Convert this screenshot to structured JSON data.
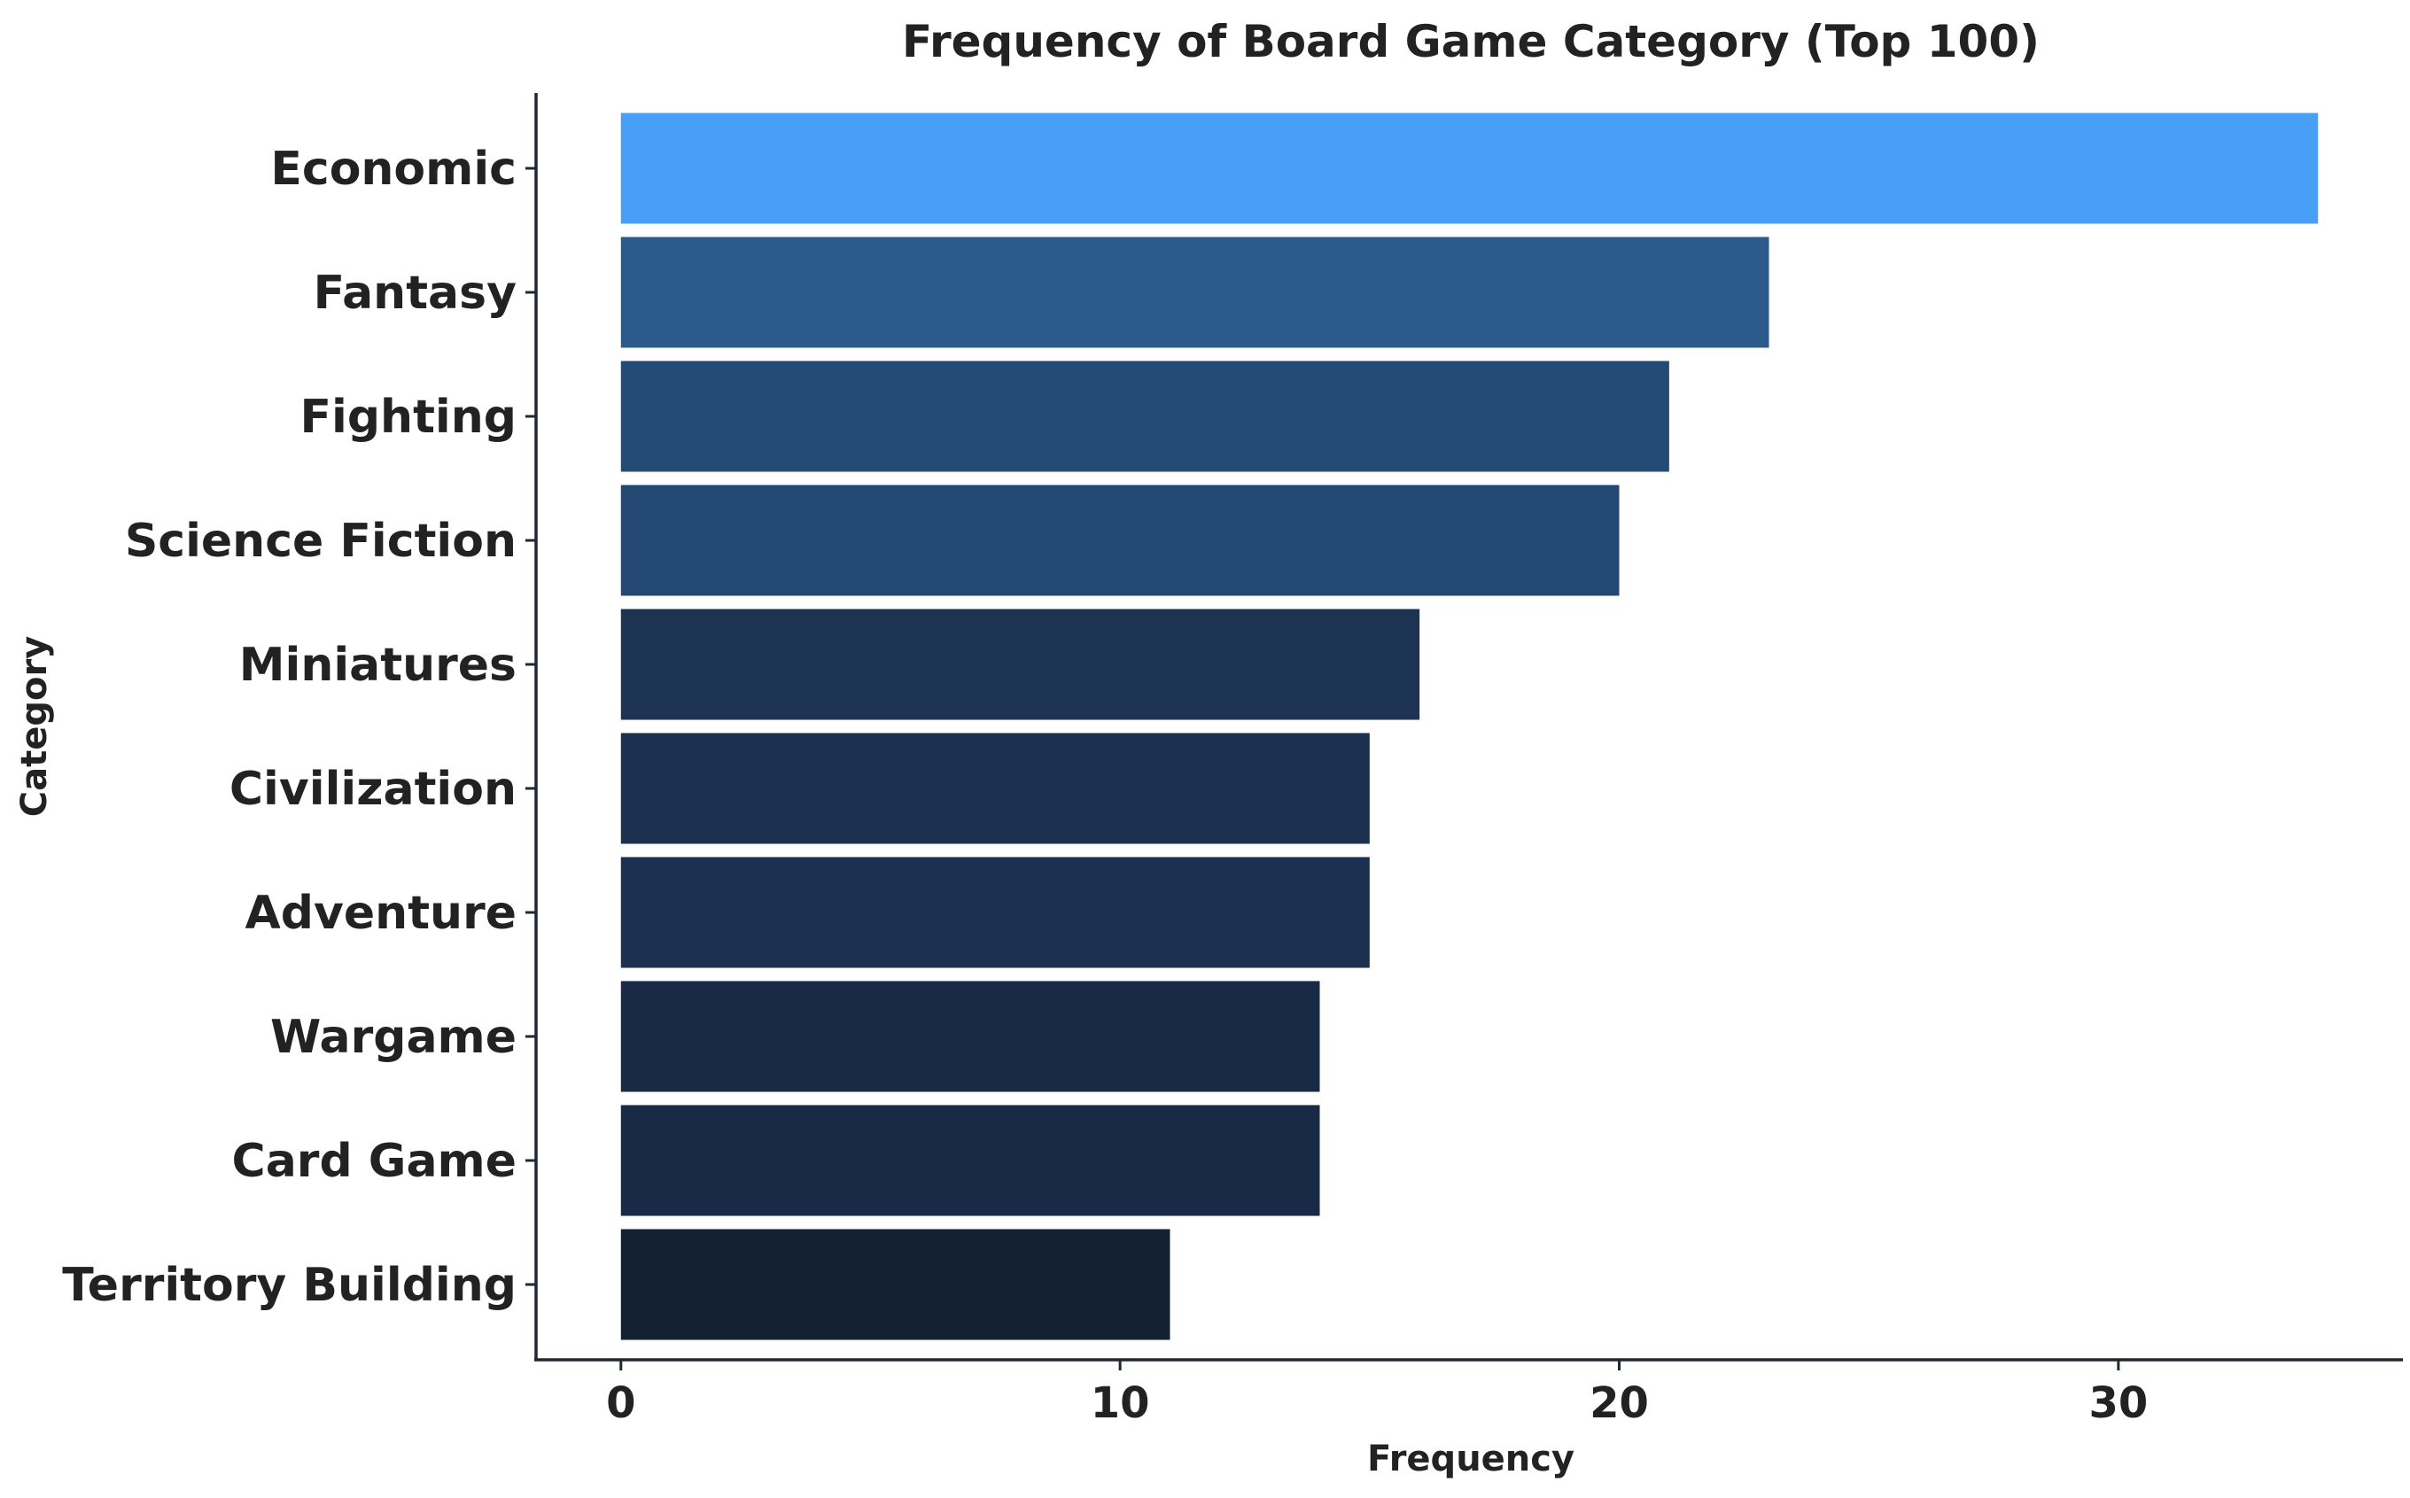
{
  "chart_data": {
    "type": "bar",
    "orientation": "horizontal",
    "title": "Frequency of Board Game Category (Top 100)",
    "xlabel": "Frequency",
    "ylabel": "Category",
    "categories": [
      "Economic",
      "Fantasy",
      "Fighting",
      "Science Fiction",
      "Miniatures",
      "Civilization",
      "Adventure",
      "Wargame",
      "Card Game",
      "Territory Building"
    ],
    "values": [
      34,
      23,
      21,
      20,
      16,
      15,
      15,
      14,
      14,
      11
    ],
    "colors": [
      "#479ff6",
      "#2a5b8a",
      "#244b76",
      "#234871",
      "#1c3352",
      "#1c304f",
      "#1c304f",
      "#182a45",
      "#182a45",
      "#132032"
    ],
    "xlim": [
      -1.7,
      35.7
    ],
    "xticks": [
      0,
      10,
      20,
      30
    ],
    "grid": false,
    "legend": "none"
  }
}
